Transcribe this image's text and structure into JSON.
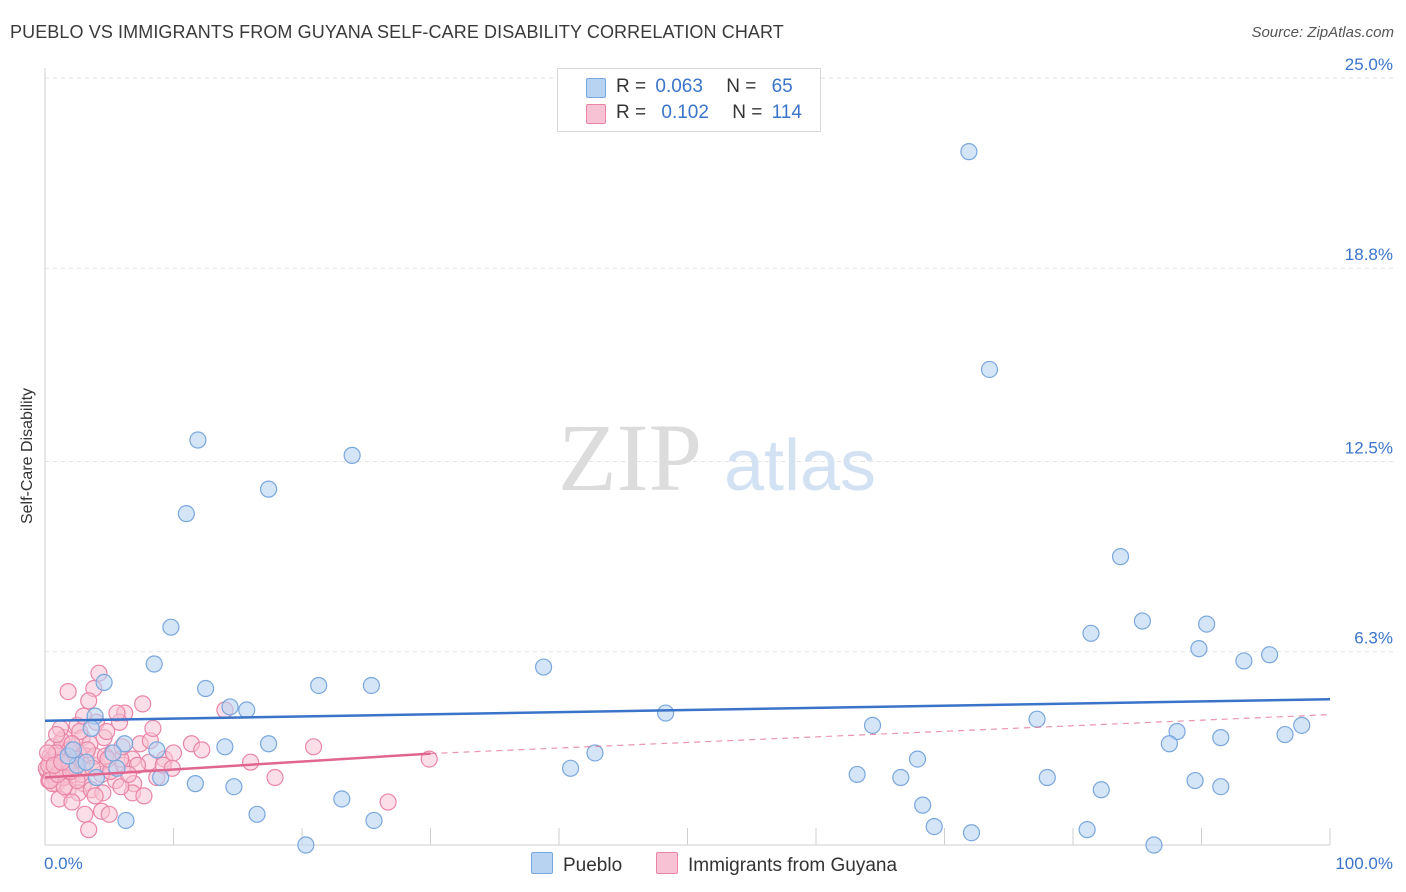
{
  "title": "PUEBLO VS IMMIGRANTS FROM GUYANA SELF-CARE DISABILITY CORRELATION CHART",
  "source": "Source: ZipAtlas.com",
  "watermark": {
    "zip": "ZIP",
    "atlas": "atlas"
  },
  "legend": {
    "pueblo": {
      "r_label": "R =",
      "r_value": "0.063",
      "n_label": "N =",
      "n_value": "65"
    },
    "guyana": {
      "r_label": "R =",
      "r_value": "0.102",
      "n_label": "N =",
      "n_value": "114"
    }
  },
  "colors": {
    "pueblo_fill": "#b8d3f2",
    "pueblo_stroke": "#7aa7dd",
    "pueblo_line": "#3a74c8",
    "guyana_fill": "#f7c2d3",
    "guyana_stroke": "#e986a7",
    "guyana_line": "#e0668f",
    "axis_text": "#3b74c9"
  },
  "chart_data": {
    "type": "scatter",
    "title": "PUEBLO VS IMMIGRANTS FROM GUYANA SELF-CARE DISABILITY CORRELATION CHART",
    "xlabel": "",
    "ylabel": "Self-Care Disability",
    "xlim": [
      0,
      100
    ],
    "ylim": [
      0,
      25.0
    ],
    "x_tick_labels": [
      "0.0%",
      "100.0%"
    ],
    "y_ticks": [
      6.3,
      12.5,
      18.8,
      25.0
    ],
    "y_tick_labels": [
      "6.3%",
      "12.5%",
      "18.8%",
      "25.0%"
    ],
    "grid": true,
    "series": [
      {
        "name": "Pueblo",
        "R": 0.063,
        "N": 65,
        "trend": {
          "x": [
            0,
            100
          ],
          "y": [
            4.05,
            4.75
          ]
        },
        "points": [
          [
            71.9,
            22.6
          ],
          [
            73.5,
            15.5
          ],
          [
            11.9,
            13.2
          ],
          [
            23.9,
            12.7
          ],
          [
            17.4,
            11.6
          ],
          [
            11.0,
            10.8
          ],
          [
            83.7,
            9.4
          ],
          [
            9.8,
            7.1
          ],
          [
            85.4,
            7.3
          ],
          [
            90.4,
            7.2
          ],
          [
            81.4,
            6.9
          ],
          [
            89.8,
            6.4
          ],
          [
            93.3,
            6.0
          ],
          [
            95.3,
            6.2
          ],
          [
            8.5,
            5.9
          ],
          [
            38.8,
            5.8
          ],
          [
            12.5,
            5.1
          ],
          [
            21.3,
            5.2
          ],
          [
            25.4,
            5.2
          ],
          [
            4.6,
            5.3
          ],
          [
            14.4,
            4.5
          ],
          [
            15.7,
            4.4
          ],
          [
            3.9,
            4.2
          ],
          [
            6.2,
            3.3
          ],
          [
            8.7,
            3.1
          ],
          [
            14.0,
            3.2
          ],
          [
            17.4,
            3.3
          ],
          [
            5.3,
            3.0
          ],
          [
            3.6,
            3.8
          ],
          [
            64.4,
            3.9
          ],
          [
            77.2,
            4.1
          ],
          [
            88.1,
            3.7
          ],
          [
            87.5,
            3.3
          ],
          [
            91.5,
            3.5
          ],
          [
            96.5,
            3.6
          ],
          [
            97.8,
            3.9
          ],
          [
            42.8,
            3.0
          ],
          [
            40.9,
            2.5
          ],
          [
            48.3,
            4.3
          ],
          [
            63.2,
            2.3
          ],
          [
            66.6,
            2.2
          ],
          [
            67.9,
            2.8
          ],
          [
            78.0,
            2.2
          ],
          [
            82.2,
            1.8
          ],
          [
            89.5,
            2.1
          ],
          [
            91.5,
            1.9
          ],
          [
            9.0,
            2.2
          ],
          [
            11.7,
            2.0
          ],
          [
            14.7,
            1.9
          ],
          [
            23.1,
            1.5
          ],
          [
            16.5,
            1.0
          ],
          [
            6.3,
            0.8
          ],
          [
            25.6,
            0.8
          ],
          [
            68.3,
            1.3
          ],
          [
            69.2,
            0.6
          ],
          [
            72.1,
            0.4
          ],
          [
            81.1,
            0.5
          ],
          [
            86.3,
            0.0
          ],
          [
            20.3,
            0.0
          ],
          [
            2.5,
            2.6
          ],
          [
            1.8,
            2.9
          ],
          [
            3.2,
            2.7
          ],
          [
            4.0,
            2.2
          ],
          [
            5.6,
            2.5
          ],
          [
            2.2,
            3.1
          ]
        ]
      },
      {
        "name": "Immigrants from Guyana",
        "R": 0.102,
        "N": 114,
        "trend": {
          "x": [
            0,
            30
          ],
          "y": [
            2.2,
            2.98
          ]
        },
        "trend_dashed": {
          "x": [
            30,
            100
          ],
          "y": [
            2.98,
            4.25
          ]
        },
        "points": [
          [
            1.8,
            5.0
          ],
          [
            4.2,
            5.6
          ],
          [
            3.8,
            5.1
          ],
          [
            3.4,
            4.7
          ],
          [
            6.2,
            4.3
          ],
          [
            5.8,
            4.0
          ],
          [
            4.0,
            4.0
          ],
          [
            2.5,
            3.9
          ],
          [
            14.0,
            4.4
          ],
          [
            2.9,
            3.5
          ],
          [
            1.5,
            3.5
          ],
          [
            1.1,
            3.1
          ],
          [
            0.5,
            2.8
          ],
          [
            2.0,
            3.0
          ],
          [
            3.5,
            3.3
          ],
          [
            5.2,
            3.0
          ],
          [
            6.8,
            2.8
          ],
          [
            8.1,
            2.7
          ],
          [
            9.3,
            2.8
          ],
          [
            10.0,
            3.0
          ],
          [
            7.4,
            3.3
          ],
          [
            2.7,
            3.7
          ],
          [
            4.6,
            3.5
          ],
          [
            1.1,
            2.6
          ],
          [
            0.8,
            2.4
          ],
          [
            0.3,
            2.1
          ],
          [
            0.6,
            2.5
          ],
          [
            1.5,
            2.2
          ],
          [
            2.2,
            2.3
          ],
          [
            3.0,
            2.0
          ],
          [
            4.4,
            2.3
          ],
          [
            5.5,
            2.1
          ],
          [
            6.9,
            2.0
          ],
          [
            8.7,
            2.2
          ],
          [
            16.0,
            2.7
          ],
          [
            17.9,
            2.2
          ],
          [
            20.9,
            3.2
          ],
          [
            29.9,
            2.8
          ],
          [
            26.7,
            1.4
          ],
          [
            8.2,
            3.4
          ],
          [
            9.2,
            2.6
          ],
          [
            3.2,
            2.9
          ],
          [
            4.1,
            2.6
          ],
          [
            5.1,
            2.4
          ],
          [
            6.1,
            2.6
          ],
          [
            2.4,
            2.6
          ],
          [
            1.4,
            2.8
          ],
          [
            0.4,
            2.9
          ],
          [
            0.9,
            2.0
          ],
          [
            1.8,
            1.8
          ],
          [
            2.6,
            1.7
          ],
          [
            3.6,
            1.8
          ],
          [
            4.5,
            1.7
          ],
          [
            6.8,
            1.7
          ],
          [
            1.1,
            1.5
          ],
          [
            2.1,
            1.4
          ],
          [
            3.1,
            1.0
          ],
          [
            3.4,
            0.5
          ],
          [
            4.4,
            1.1
          ],
          [
            5.0,
            1.0
          ],
          [
            7.7,
            1.6
          ],
          [
            0.6,
            3.2
          ],
          [
            1.3,
            3.4
          ],
          [
            2.6,
            3.0
          ],
          [
            3.9,
            2.9
          ],
          [
            5.9,
            2.8
          ],
          [
            7.2,
            2.6
          ],
          [
            0.2,
            2.4
          ],
          [
            0.7,
            2.2
          ],
          [
            1.6,
            2.6
          ],
          [
            2.9,
            2.5
          ],
          [
            0.4,
            2.7
          ],
          [
            1.0,
            2.9
          ],
          [
            1.9,
            3.1
          ],
          [
            3.3,
            3.1
          ],
          [
            4.7,
            2.9
          ],
          [
            0.1,
            2.5
          ],
          [
            0.5,
            2.3
          ],
          [
            1.2,
            2.4
          ],
          [
            2.3,
            2.7
          ],
          [
            0.8,
            2.7
          ],
          [
            1.7,
            2.5
          ],
          [
            2.8,
            2.3
          ],
          [
            0.3,
            2.6
          ],
          [
            1.4,
            2.2
          ],
          [
            0.9,
            3.0
          ],
          [
            2.4,
            2.8
          ],
          [
            3.7,
            2.5
          ],
          [
            6.0,
            3.2
          ],
          [
            9.9,
            2.5
          ],
          [
            11.4,
            3.3
          ],
          [
            12.2,
            3.1
          ],
          [
            4.8,
            3.7
          ],
          [
            8.4,
            3.8
          ],
          [
            5.6,
            4.3
          ],
          [
            7.6,
            4.6
          ],
          [
            3.0,
            4.2
          ],
          [
            1.2,
            3.8
          ],
          [
            0.9,
            3.6
          ],
          [
            0.2,
            3.0
          ],
          [
            0.6,
            2.0
          ],
          [
            1.5,
            1.9
          ],
          [
            2.5,
            2.1
          ],
          [
            3.9,
            1.6
          ],
          [
            5.9,
            1.9
          ],
          [
            6.5,
            2.3
          ],
          [
            4.9,
            2.8
          ],
          [
            2.1,
            3.3
          ],
          [
            0.4,
            2.1
          ],
          [
            1.0,
            2.3
          ],
          [
            1.8,
            2.7
          ],
          [
            0.7,
            2.6
          ],
          [
            2.0,
            2.4
          ],
          [
            1.3,
            2.7
          ]
        ]
      }
    ]
  }
}
